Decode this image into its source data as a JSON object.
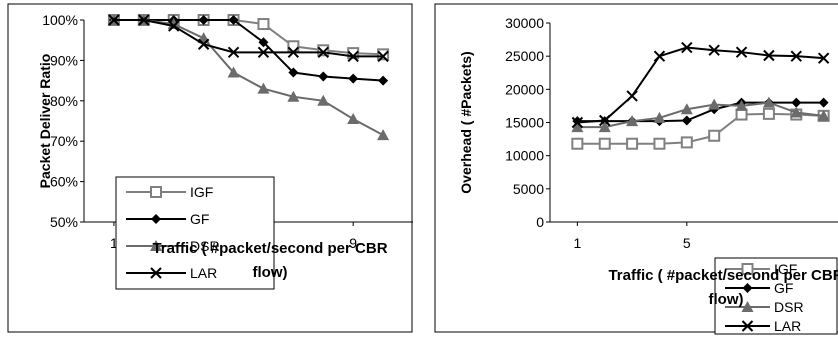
{
  "chart_data": [
    {
      "type": "line",
      "title": "",
      "xlabel": "Traffic ( #packet/second per CBR flow)",
      "xlabel_lines": [
        "Traffic ( #packet/second per CBR",
        "flow)"
      ],
      "ylabel": "Packet Deliver Ratio",
      "x": [
        1,
        2,
        3,
        4,
        5,
        6,
        7,
        8,
        9,
        10
      ],
      "xticks": [
        "1",
        "5",
        "9"
      ],
      "xtick_values": [
        1,
        5,
        9
      ],
      "xlim": [
        0,
        11
      ],
      "ylim": [
        50,
        100
      ],
      "yticks": [
        "50%",
        "60%",
        "70%",
        "80%",
        "90%",
        "100%"
      ],
      "ytick_values": [
        50,
        60,
        70,
        80,
        90,
        100
      ],
      "legend_position": "center-left",
      "series": [
        {
          "name": "IGF",
          "marker": "square-open",
          "color": "#808080",
          "values": [
            100,
            100,
            100,
            100,
            100,
            99,
            93.5,
            92.5,
            91.8,
            91.5
          ]
        },
        {
          "name": "GF",
          "marker": "diamond",
          "color": "#000000",
          "values": [
            100,
            100,
            100,
            100,
            100,
            94.5,
            87,
            86,
            85.5,
            85
          ]
        },
        {
          "name": "DSR",
          "marker": "triangle",
          "color": "#6b6b6b",
          "values": [
            100,
            100,
            99,
            95.5,
            87,
            83,
            81,
            80,
            75.5,
            71.5
          ]
        },
        {
          "name": "LAR",
          "marker": "x",
          "color": "#000000",
          "values": [
            100,
            100,
            98.5,
            94,
            92,
            92,
            92,
            92,
            91,
            91
          ]
        }
      ]
    },
    {
      "type": "line",
      "title": "",
      "xlabel": "Traffic ( #packet/second per CBR flow)",
      "xlabel_lines": [
        "Traffic ( #packet/second per CBR",
        "flow)"
      ],
      "ylabel": "Overhead ( #Packets)",
      "x": [
        1,
        2,
        3,
        4,
        5,
        6,
        7,
        8,
        9,
        10
      ],
      "xticks": [
        "1",
        "5"
      ],
      "xtick_values": [
        1,
        5
      ],
      "xlim": [
        0,
        11
      ],
      "ylim": [
        0,
        30000
      ],
      "yticks": [
        "0",
        "5000",
        "10000",
        "15000",
        "20000",
        "25000",
        "30000"
      ],
      "ytick_values": [
        0,
        5000,
        10000,
        15000,
        20000,
        25000,
        30000
      ],
      "legend_position": "bottom-right",
      "series": [
        {
          "name": "IGF",
          "marker": "square-open",
          "color": "#808080",
          "values": [
            11800,
            11800,
            11800,
            11800,
            12000,
            13000,
            16200,
            16300,
            16200,
            16000
          ]
        },
        {
          "name": "GF",
          "marker": "diamond",
          "color": "#000000",
          "values": [
            15200,
            15200,
            15200,
            15200,
            15300,
            17000,
            18000,
            18000,
            18000,
            18000
          ]
        },
        {
          "name": "DSR",
          "marker": "triangle",
          "color": "#6b6b6b",
          "values": [
            14300,
            14300,
            15200,
            15700,
            17000,
            17700,
            17500,
            18000,
            16500,
            16000
          ]
        },
        {
          "name": "LAR",
          "marker": "x",
          "color": "#000000",
          "values": [
            15000,
            15300,
            19000,
            25000,
            26300,
            25900,
            25600,
            25100,
            25000,
            24700
          ]
        }
      ]
    }
  ]
}
